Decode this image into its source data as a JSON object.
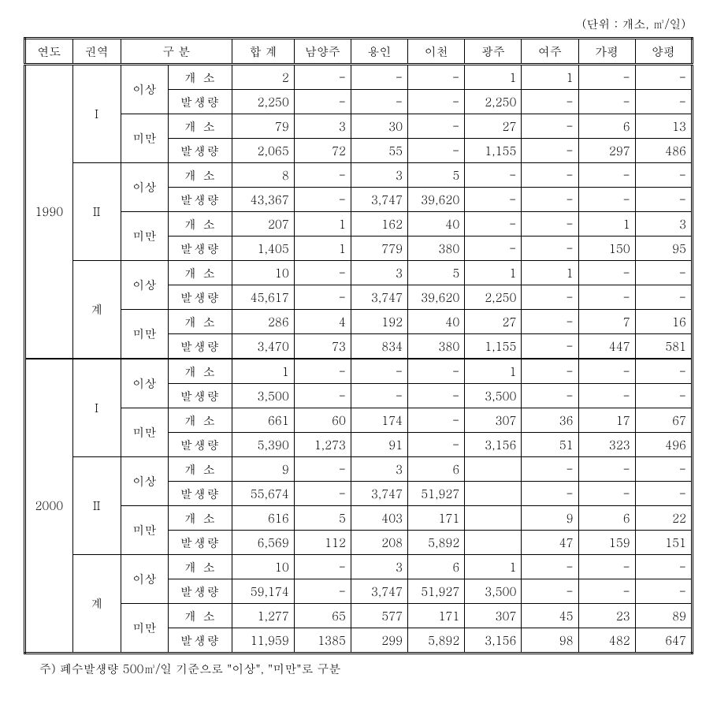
{
  "unit_label": "(단위 : 개소, ㎥/일)",
  "headers": {
    "year": "연도",
    "region": "권역",
    "division": "구  분",
    "total": "합 계",
    "c1": "남양주",
    "c2": "용인",
    "c3": "이천",
    "c4": "광주",
    "c5": "여주",
    "c6": "가평",
    "c7": "양평"
  },
  "labels": {
    "above": "이상",
    "below": "미만",
    "count": "개  소",
    "amount": "발생량",
    "subtotal": "계",
    "region1": "Ⅰ",
    "region2": "Ⅱ"
  },
  "years": {
    "y1990": "1990",
    "y2000": "2000"
  },
  "data": {
    "y1990_r1_above_count": {
      "total": "2",
      "c1": "-",
      "c2": "-",
      "c3": "-",
      "c4": "1",
      "c5": "1",
      "c6": "-",
      "c7": "-"
    },
    "y1990_r1_above_amount": {
      "total": "2,250",
      "c1": "-",
      "c2": "-",
      "c3": "-",
      "c4": "2,250",
      "c5": "-",
      "c6": "-",
      "c7": "-"
    },
    "y1990_r1_below_count": {
      "total": "79",
      "c1": "3",
      "c2": "30",
      "c3": "-",
      "c4": "27",
      "c5": "-",
      "c6": "6",
      "c7": "13"
    },
    "y1990_r1_below_amount": {
      "total": "2,065",
      "c1": "72",
      "c2": "55",
      "c3": "-",
      "c4": "1,155",
      "c5": "-",
      "c6": "297",
      "c7": "486"
    },
    "y1990_r2_above_count": {
      "total": "8",
      "c1": "-",
      "c2": "3",
      "c3": "5",
      "c4": "-",
      "c5": "-",
      "c6": "-",
      "c7": "-"
    },
    "y1990_r2_above_amount": {
      "total": "43,367",
      "c1": "-",
      "c2": "3,747",
      "c3": "39,620",
      "c4": "-",
      "c5": "-",
      "c6": "-",
      "c7": "-"
    },
    "y1990_r2_below_count": {
      "total": "207",
      "c1": "1",
      "c2": "162",
      "c3": "40",
      "c4": "-",
      "c5": "-",
      "c6": "1",
      "c7": "3"
    },
    "y1990_r2_below_amount": {
      "total": "1,405",
      "c1": "1",
      "c2": "779",
      "c3": "380",
      "c4": "-",
      "c5": "-",
      "c6": "150",
      "c7": "95"
    },
    "y1990_sub_above_count": {
      "total": "10",
      "c1": "-",
      "c2": "3",
      "c3": "5",
      "c4": "1",
      "c5": "1",
      "c6": "-",
      "c7": "-"
    },
    "y1990_sub_above_amount": {
      "total": "45,617",
      "c1": "-",
      "c2": "3,747",
      "c3": "39,620",
      "c4": "2,250",
      "c5": "-",
      "c6": "-",
      "c7": "-"
    },
    "y1990_sub_below_count": {
      "total": "286",
      "c1": "4",
      "c2": "192",
      "c3": "40",
      "c4": "27",
      "c5": "-",
      "c6": "7",
      "c7": "16"
    },
    "y1990_sub_below_amount": {
      "total": "3,470",
      "c1": "73",
      "c2": "834",
      "c3": "380",
      "c4": "1,155",
      "c5": "-",
      "c6": "447",
      "c7": "581"
    },
    "y2000_r1_above_count": {
      "total": "1",
      "c1": "-",
      "c2": "-",
      "c3": "-",
      "c4": "1",
      "c5": "-",
      "c6": "-",
      "c7": "-"
    },
    "y2000_r1_above_amount": {
      "total": "3,500",
      "c1": "-",
      "c2": "-",
      "c3": "-",
      "c4": "3,500",
      "c5": "-",
      "c6": "-",
      "c7": "-"
    },
    "y2000_r1_below_count": {
      "total": "661",
      "c1": "60",
      "c2": "174",
      "c3": "-",
      "c4": "307",
      "c5": "36",
      "c6": "17",
      "c7": "67"
    },
    "y2000_r1_below_amount": {
      "total": "5,390",
      "c1": "1,273",
      "c2": "91",
      "c3": "-",
      "c4": "3,156",
      "c5": "51",
      "c6": "323",
      "c7": "496"
    },
    "y2000_r2_above_count": {
      "total": "9",
      "c1": "-",
      "c2": "3",
      "c3": "6",
      "c4": "",
      "c5": "-",
      "c6": "-",
      "c7": "-"
    },
    "y2000_r2_above_amount": {
      "total": "55,674",
      "c1": "-",
      "c2": "3,747",
      "c3": "51,927",
      "c4": "",
      "c5": "-",
      "c6": "-",
      "c7": "-"
    },
    "y2000_r2_below_count": {
      "total": "616",
      "c1": "5",
      "c2": "403",
      "c3": "171",
      "c4": "",
      "c5": "9",
      "c6": "6",
      "c7": "22"
    },
    "y2000_r2_below_amount": {
      "total": "6,569",
      "c1": "112",
      "c2": "208",
      "c3": "5,892",
      "c4": "",
      "c5": "47",
      "c6": "159",
      "c7": "151"
    },
    "y2000_sub_above_count": {
      "total": "10",
      "c1": "-",
      "c2": "3",
      "c3": "6",
      "c4": "1",
      "c5": "-",
      "c6": "-",
      "c7": "-"
    },
    "y2000_sub_above_amount": {
      "total": "59,174",
      "c1": "-",
      "c2": "3,747",
      "c3": "51,927",
      "c4": "3,500",
      "c5": "-",
      "c6": "-",
      "c7": "-"
    },
    "y2000_sub_below_count": {
      "total": "1,277",
      "c1": "65",
      "c2": "577",
      "c3": "171",
      "c4": "307",
      "c5": "45",
      "c6": "23",
      "c7": "89"
    },
    "y2000_sub_below_amount": {
      "total": "11,959",
      "c1": "1385",
      "c2": "299",
      "c3": "5,892",
      "c4": "3,156",
      "c5": "98",
      "c6": "482",
      "c7": "647"
    }
  },
  "footnote": "주) 폐수발생량 500㎥/일 기준으로 \"이상\", \"미만\"로 구분",
  "style": {
    "font_family": "Batang, serif",
    "font_size_pt": 11,
    "border_color": "#000000",
    "bg_color": "#ffffff"
  }
}
